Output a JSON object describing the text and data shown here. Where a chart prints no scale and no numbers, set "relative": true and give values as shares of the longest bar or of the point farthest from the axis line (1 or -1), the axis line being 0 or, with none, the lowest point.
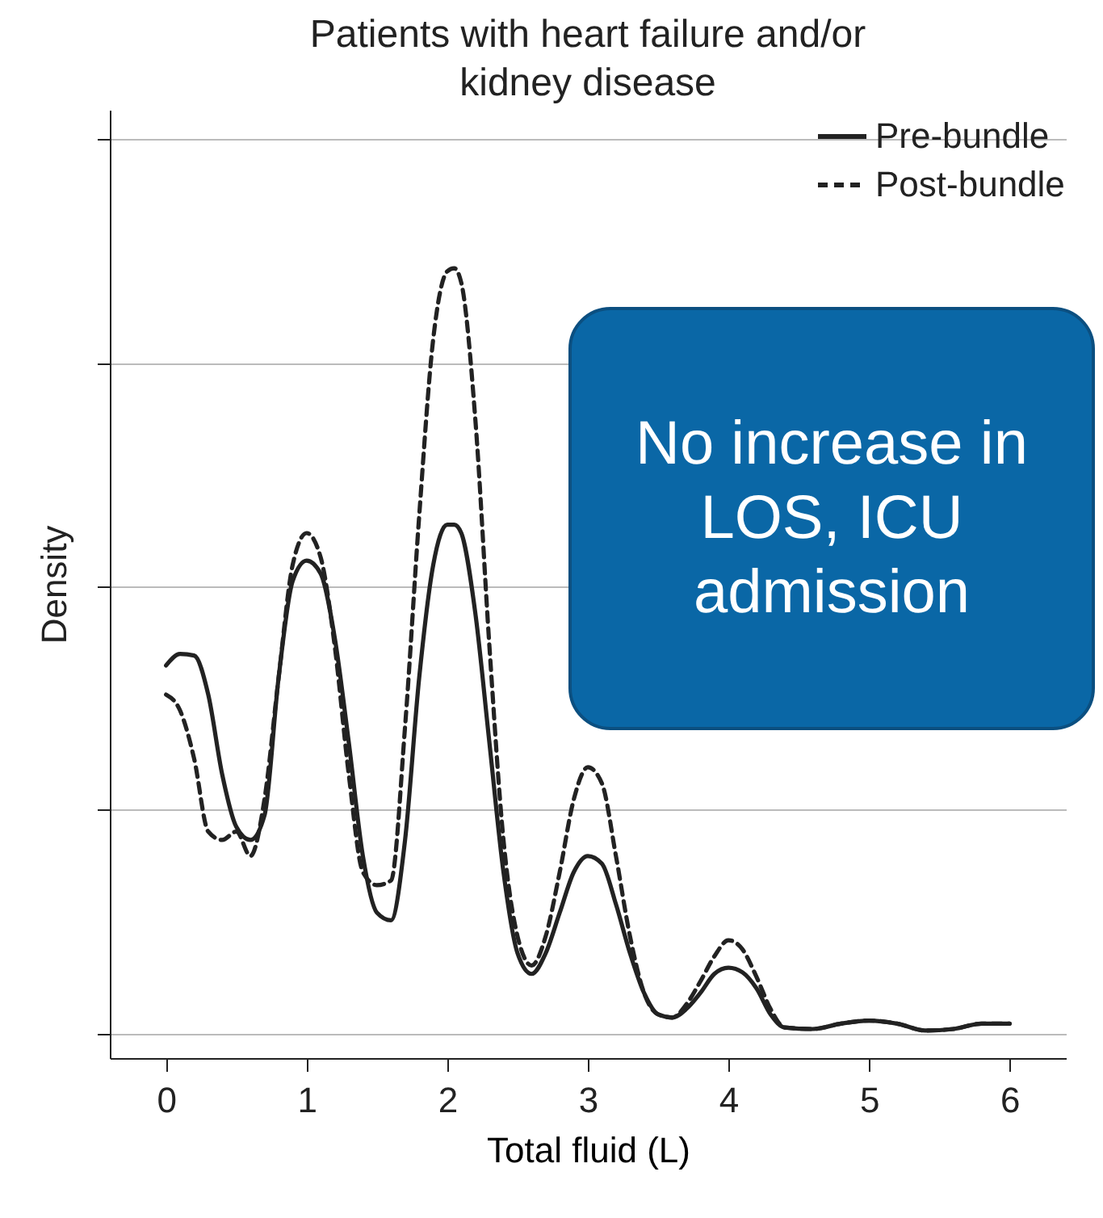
{
  "chart_data": {
    "type": "line",
    "title": "Patients with heart failure and/or kidney disease",
    "xlabel": "Total fluid (L)",
    "ylabel": "Density",
    "relative": true,
    "x": [
      0,
      0.1,
      0.2,
      0.3,
      0.4,
      0.5,
      0.6,
      0.7,
      0.8,
      0.9,
      1.0,
      1.1,
      1.2,
      1.3,
      1.4,
      1.5,
      1.6,
      1.7,
      1.8,
      1.9,
      2.0,
      2.05,
      2.1,
      2.2,
      2.3,
      2.4,
      2.5,
      2.6,
      2.7,
      2.8,
      2.9,
      3.0,
      3.1,
      3.2,
      3.3,
      3.4,
      3.5,
      3.6,
      3.7,
      3.8,
      3.9,
      4.0,
      4.1,
      4.2,
      4.3,
      4.4,
      4.6,
      4.8,
      5.0,
      5.2,
      5.4,
      5.6,
      5.8,
      6.0
    ],
    "series": [
      {
        "name": "Pre-bundle",
        "color": "#222222",
        "line_style": "solid",
        "values": [
          0.481,
          0.496,
          0.494,
          0.443,
          0.338,
          0.27,
          0.253,
          0.285,
          0.464,
          0.591,
          0.618,
          0.601,
          0.517,
          0.38,
          0.232,
          0.158,
          0.148,
          0.253,
          0.464,
          0.612,
          0.665,
          0.665,
          0.654,
          0.549,
          0.38,
          0.211,
          0.105,
          0.078,
          0.105,
          0.158,
          0.211,
          0.232,
          0.222,
          0.169,
          0.105,
          0.053,
          0.025,
          0.021,
          0.032,
          0.053,
          0.078,
          0.086,
          0.08,
          0.059,
          0.025,
          0.008,
          0.006,
          0.013,
          0.017,
          0.013,
          0.004,
          0.006,
          0.013,
          0.013
        ]
      },
      {
        "name": "Post-bundle",
        "color": "#222222",
        "line_style": "dashed",
        "values": [
          0.443,
          0.422,
          0.359,
          0.264,
          0.253,
          0.264,
          0.232,
          0.306,
          0.464,
          0.612,
          0.654,
          0.622,
          0.506,
          0.338,
          0.211,
          0.194,
          0.2,
          0.401,
          0.675,
          0.907,
          0.996,
          1,
          0.981,
          0.802,
          0.506,
          0.253,
          0.127,
          0.089,
          0.127,
          0.211,
          0.306,
          0.348,
          0.327,
          0.232,
          0.127,
          0.053,
          0.025,
          0.021,
          0.038,
          0.068,
          0.101,
          0.122,
          0.11,
          0.074,
          0.032,
          0.008,
          0.006,
          0.013,
          0.017,
          0.013,
          0.004,
          0.006,
          0.013,
          0.013
        ]
      }
    ],
    "xlim": [
      -0.4,
      6.4
    ],
    "xticks": [
      0,
      1,
      2,
      3,
      4,
      5,
      6
    ],
    "grid": "y",
    "legend": "top right",
    "annotations": [
      "No increase in LOS, ICU admission"
    ]
  }
}
